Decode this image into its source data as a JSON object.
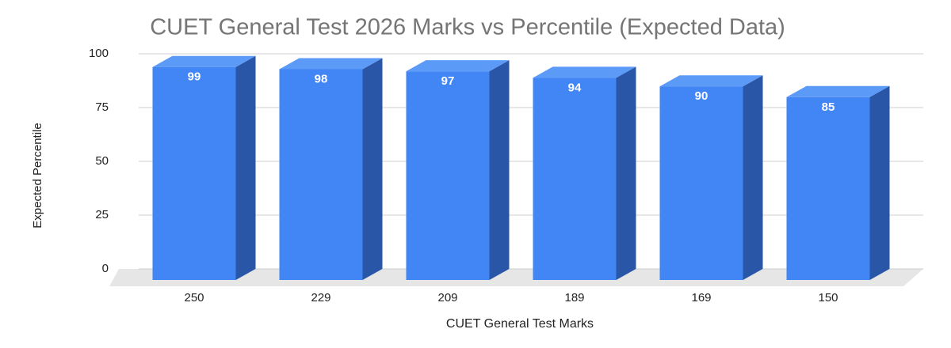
{
  "chart_data": {
    "type": "bar3d",
    "title": "CUET General Test 2026 Marks vs Percentile (Expected Data)",
    "x_label": "CUET General Test Marks",
    "y_label": "Expected Percentile",
    "categories": [
      "250",
      "229",
      "209",
      "189",
      "169",
      "150"
    ],
    "values": [
      99,
      98,
      97,
      94,
      90,
      85
    ],
    "color": "#4285f4",
    "ylim": [
      0,
      100
    ],
    "yticks": [
      0,
      25,
      50,
      75,
      100
    ],
    "grid": true
  }
}
